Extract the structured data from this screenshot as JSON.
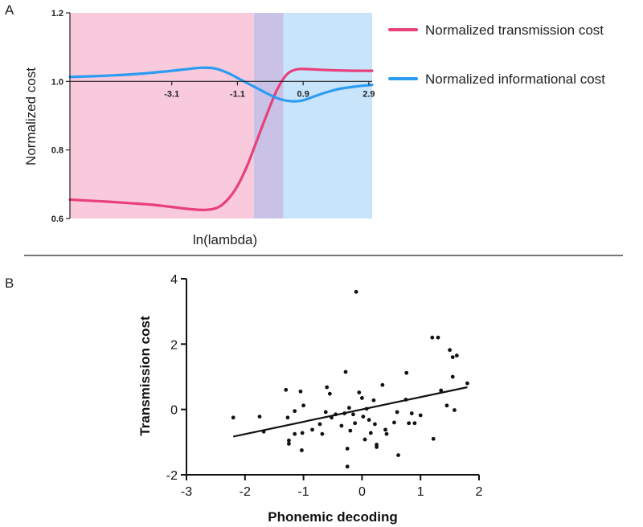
{
  "chart_data": [
    {
      "panel_label": "A",
      "type": "line",
      "xlabel": "ln(lambda)",
      "ylabel": "Normalized cost",
      "xlim": [
        -6.2,
        3.0
      ],
      "ylim": [
        0.6,
        1.2
      ],
      "y_ticks": [
        "0.6",
        "0.8",
        "1.0",
        "1.2"
      ],
      "x_ticks": [
        {
          "value": -3.1,
          "label": "-3.1"
        },
        {
          "value": -1.1,
          "label": "-1.1"
        },
        {
          "value": 0.9,
          "label": "0.9"
        },
        {
          "value": 2.9,
          "label": "2.9"
        }
      ],
      "regions": [
        {
          "name": "transmission-dominant",
          "x0": -6.2,
          "x1": -0.6,
          "color": "#f9c9dc"
        },
        {
          "name": "overlap",
          "x0": -0.6,
          "x1": 0.3,
          "color": "#c9c2e6"
        },
        {
          "name": "informational-dominant",
          "x0": 0.3,
          "x1": 3.0,
          "color": "#c7e4fb"
        }
      ],
      "series": [
        {
          "name": "Normalized transmission cost",
          "color": "#e8407a",
          "x": [
            -6.2,
            -5.6,
            -5.0,
            -4.4,
            -3.8,
            -3.2,
            -2.6,
            -2.1,
            -1.7,
            -1.4,
            -1.1,
            -0.8,
            -0.5,
            -0.2,
            0.1,
            0.4,
            0.7,
            1.0,
            1.4,
            2.0,
            2.5,
            3.0
          ],
          "y": [
            0.655,
            0.652,
            0.649,
            0.645,
            0.641,
            0.635,
            0.628,
            0.625,
            0.632,
            0.655,
            0.695,
            0.755,
            0.83,
            0.905,
            0.975,
            1.02,
            1.035,
            1.036,
            1.034,
            1.032,
            1.031,
            1.031
          ]
        },
        {
          "name": "Normalized informational cost",
          "color": "#2c9cf2",
          "x": [
            -6.2,
            -5.5,
            -4.8,
            -4.1,
            -3.4,
            -2.7,
            -2.2,
            -1.8,
            -1.4,
            -1.0,
            -0.6,
            -0.2,
            0.2,
            0.6,
            0.9,
            1.2,
            1.6,
            2.0,
            2.5,
            3.0
          ],
          "y": [
            1.013,
            1.015,
            1.018,
            1.022,
            1.028,
            1.035,
            1.04,
            1.038,
            1.025,
            1.005,
            0.985,
            0.965,
            0.948,
            0.942,
            0.945,
            0.955,
            0.968,
            0.978,
            0.985,
            0.99
          ]
        }
      ]
    },
    {
      "panel_label": "B",
      "type": "scatter",
      "xlabel": "Phonemic decoding",
      "ylabel": "Transmission cost",
      "xlim": [
        -3,
        2
      ],
      "ylim": [
        -2,
        4
      ],
      "x_ticks": [
        "-3",
        "-2",
        "-1",
        "0",
        "1",
        "2"
      ],
      "y_ticks": [
        "-2",
        "0",
        "2",
        "4"
      ],
      "regression": {
        "x": [
          -2.2,
          1.8
        ],
        "y": [
          -0.83,
          0.68
        ]
      },
      "points": [
        [
          -2.2,
          -0.25
        ],
        [
          -1.75,
          -0.22
        ],
        [
          -1.68,
          -0.68
        ],
        [
          -1.3,
          0.6
        ],
        [
          -1.27,
          -0.25
        ],
        [
          -1.25,
          -0.95
        ],
        [
          -1.25,
          -1.05
        ],
        [
          -1.15,
          -0.05
        ],
        [
          -1.15,
          -0.75
        ],
        [
          -1.05,
          0.55
        ],
        [
          -1.03,
          -1.25
        ],
        [
          -1.02,
          -0.72
        ],
        [
          -1.0,
          0.12
        ],
        [
          -0.85,
          -0.62
        ],
        [
          -0.72,
          -0.45
        ],
        [
          -0.68,
          -0.75
        ],
        [
          -0.62,
          -0.08
        ],
        [
          -0.6,
          0.68
        ],
        [
          -0.55,
          0.48
        ],
        [
          -0.52,
          -0.25
        ],
        [
          -0.45,
          -0.15
        ],
        [
          -0.35,
          -0.5
        ],
        [
          -0.3,
          -0.12
        ],
        [
          -0.28,
          1.15
        ],
        [
          -0.25,
          -1.2
        ],
        [
          -0.25,
          -1.75
        ],
        [
          -0.22,
          0.05
        ],
        [
          -0.2,
          -0.65
        ],
        [
          -0.15,
          -0.15
        ],
        [
          -0.12,
          -0.42
        ],
        [
          -0.1,
          3.6
        ],
        [
          -0.05,
          0.52
        ],
        [
          0.0,
          0.35
        ],
        [
          0.02,
          -0.22
        ],
        [
          0.05,
          -0.92
        ],
        [
          0.08,
          0.02
        ],
        [
          0.12,
          -0.32
        ],
        [
          0.15,
          -0.72
        ],
        [
          0.2,
          0.28
        ],
        [
          0.22,
          -0.45
        ],
        [
          0.25,
          -1.15
        ],
        [
          0.25,
          -1.08
        ],
        [
          0.35,
          0.75
        ],
        [
          0.4,
          -0.62
        ],
        [
          0.42,
          -0.75
        ],
        [
          0.55,
          -0.4
        ],
        [
          0.6,
          -0.08
        ],
        [
          0.62,
          -1.4
        ],
        [
          0.75,
          0.3
        ],
        [
          0.76,
          1.12
        ],
        [
          0.8,
          -0.42
        ],
        [
          0.85,
          -0.12
        ],
        [
          0.9,
          -0.42
        ],
        [
          1.0,
          -0.18
        ],
        [
          1.2,
          2.2
        ],
        [
          1.22,
          -0.9
        ],
        [
          1.3,
          2.2
        ],
        [
          1.35,
          0.58
        ],
        [
          1.45,
          0.12
        ],
        [
          1.5,
          1.82
        ],
        [
          1.55,
          1.6
        ],
        [
          1.55,
          1.0
        ],
        [
          1.58,
          -0.02
        ],
        [
          1.62,
          1.65
        ],
        [
          1.8,
          0.8
        ]
      ]
    }
  ]
}
